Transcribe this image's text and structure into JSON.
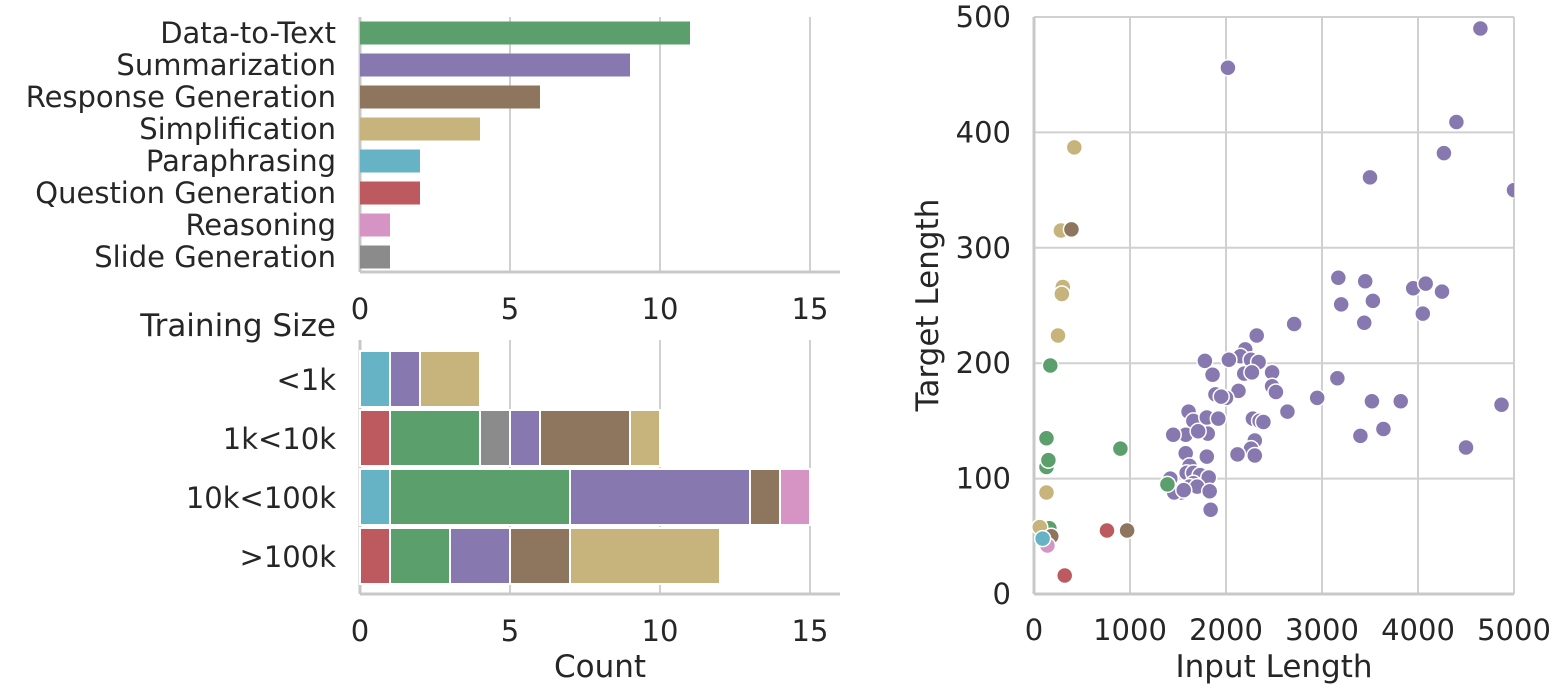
{
  "colors": {
    "Data-to-Text": "#5b9f6d",
    "Summarization": "#8779b0",
    "Response Generation": "#8e765e",
    "Simplification": "#c6b47c",
    "Paraphrasing": "#66b3c6",
    "Question Generation": "#bc5a5f",
    "Reasoning": "#d594c3",
    "Slide Generation": "#8b8b8b"
  },
  "chart_data": [
    {
      "type": "bar",
      "orientation": "horizontal",
      "categories": [
        "Data-to-Text",
        "Summarization",
        "Response Generation",
        "Simplification",
        "Paraphrasing",
        "Question Generation",
        "Reasoning",
        "Slide Generation"
      ],
      "values": [
        11,
        9,
        6,
        4,
        2,
        2,
        1,
        1
      ],
      "xlim": [
        0,
        16
      ],
      "xticks": [
        "0",
        "5",
        "10",
        "15"
      ],
      "xlabel": "",
      "ylabel": "",
      "grid": true
    },
    {
      "type": "bar",
      "orientation": "horizontal",
      "stacked": true,
      "title": "Training Size",
      "categories": [
        "<1k",
        "1k<10k",
        "10k<100k",
        ">100k"
      ],
      "segments": [
        [
          {
            "task": "Paraphrasing",
            "value": 1
          },
          {
            "task": "Summarization",
            "value": 1
          },
          {
            "task": "Simplification",
            "value": 2
          }
        ],
        [
          {
            "task": "Question Generation",
            "value": 1
          },
          {
            "task": "Data-to-Text",
            "value": 3
          },
          {
            "task": "Slide Generation",
            "value": 1
          },
          {
            "task": "Summarization",
            "value": 1
          },
          {
            "task": "Response Generation",
            "value": 3
          },
          {
            "task": "Simplification",
            "value": 1
          }
        ],
        [
          {
            "task": "Paraphrasing",
            "value": 1
          },
          {
            "task": "Data-to-Text",
            "value": 6
          },
          {
            "task": "Summarization",
            "value": 6
          },
          {
            "task": "Response Generation",
            "value": 1
          },
          {
            "task": "Reasoning",
            "value": 1
          }
        ],
        [
          {
            "task": "Question Generation",
            "value": 1
          },
          {
            "task": "Data-to-Text",
            "value": 2
          },
          {
            "task": "Summarization",
            "value": 2
          },
          {
            "task": "Response Generation",
            "value": 2
          },
          {
            "task": "Simplification",
            "value": 5
          }
        ]
      ],
      "xlim": [
        0,
        16
      ],
      "xticks": [
        "0",
        "5",
        "10",
        "15"
      ],
      "xlabel": "Count",
      "ylabel": "",
      "grid": true
    },
    {
      "type": "scatter",
      "xlabel": "Input Length",
      "ylabel": "Target Length",
      "xlim": [
        0,
        5000
      ],
      "ylim": [
        0,
        500
      ],
      "xticks": [
        "0",
        "1000",
        "2000",
        "3000",
        "4000",
        "5000"
      ],
      "yticks": [
        "0",
        "100",
        "200",
        "300",
        "400",
        "500"
      ],
      "grid": true,
      "series": [
        {
          "task": "Summarization",
          "points": [
            [
              4650,
              490
            ],
            [
              2020,
              456
            ],
            [
              4400,
              409
            ],
            [
              4270,
              382
            ],
            [
              3500,
              361
            ],
            [
              5000,
              350
            ],
            [
              3170,
              274
            ],
            [
              3450,
              271
            ],
            [
              3200,
              251
            ],
            [
              3530,
              254
            ],
            [
              3950,
              265
            ],
            [
              4080,
              269
            ],
            [
              4250,
              262
            ],
            [
              4050,
              243
            ],
            [
              3440,
              235
            ],
            [
              2710,
              234
            ],
            [
              2320,
              224
            ],
            [
              2200,
              212
            ],
            [
              2150,
              206
            ],
            [
              2030,
              203
            ],
            [
              1780,
              202
            ],
            [
              2260,
              203
            ],
            [
              2340,
              201
            ],
            [
              2190,
              191
            ],
            [
              2270,
              192
            ],
            [
              2480,
              192
            ],
            [
              1860,
              190
            ],
            [
              2480,
              180
            ],
            [
              2520,
              175
            ],
            [
              2130,
              176
            ],
            [
              2000,
              170
            ],
            [
              1890,
              173
            ],
            [
              1950,
              171
            ],
            [
              2950,
              170
            ],
            [
              3160,
              187
            ],
            [
              3520,
              167
            ],
            [
              3820,
              167
            ],
            [
              4870,
              164
            ],
            [
              3640,
              143
            ],
            [
              3400,
              137
            ],
            [
              4500,
              127
            ],
            [
              1610,
              158
            ],
            [
              1660,
              150
            ],
            [
              1580,
              138
            ],
            [
              1800,
              153
            ],
            [
              1920,
              152
            ],
            [
              2280,
              152
            ],
            [
              2350,
              150
            ],
            [
              2390,
              149
            ],
            [
              2640,
              158
            ],
            [
              1810,
              139
            ],
            [
              1710,
              141
            ],
            [
              2300,
              133
            ],
            [
              2260,
              126
            ],
            [
              2300,
              120
            ],
            [
              2120,
              121
            ],
            [
              1450,
              138
            ],
            [
              1580,
              122
            ],
            [
              1620,
              111
            ],
            [
              1590,
              105
            ],
            [
              1660,
              105
            ],
            [
              1730,
              103
            ],
            [
              1800,
              119
            ],
            [
              1820,
              101
            ],
            [
              1660,
              96
            ],
            [
              1620,
              93
            ],
            [
              1700,
              93
            ],
            [
              1830,
              89
            ],
            [
              1530,
              88
            ],
            [
              1420,
              100
            ],
            [
              1460,
              88
            ],
            [
              1560,
              90
            ],
            [
              1840,
              73
            ]
          ]
        },
        {
          "task": "Data-to-Text",
          "points": [
            [
              900,
              126
            ],
            [
              170,
              198
            ],
            [
              130,
              135
            ],
            [
              130,
              110
            ],
            [
              150,
              116
            ],
            [
              1390,
              95
            ],
            [
              160,
              57
            ]
          ]
        },
        {
          "task": "Simplification",
          "points": [
            [
              420,
              387
            ],
            [
              300,
              266
            ],
            [
              290,
              260
            ],
            [
              250,
              224
            ],
            [
              130,
              88
            ],
            [
              280,
              315
            ],
            [
              60,
              58
            ]
          ]
        },
        {
          "task": "Response Generation",
          "points": [
            [
              390,
              316
            ],
            [
              970,
              55
            ],
            [
              180,
              50
            ]
          ]
        },
        {
          "task": "Question Generation",
          "points": [
            [
              760,
              55
            ],
            [
              320,
              16
            ]
          ]
        },
        {
          "task": "Reasoning",
          "points": [
            [
              140,
              42
            ]
          ]
        },
        {
          "task": "Paraphrasing",
          "points": [
            [
              90,
              48
            ]
          ]
        }
      ]
    }
  ]
}
